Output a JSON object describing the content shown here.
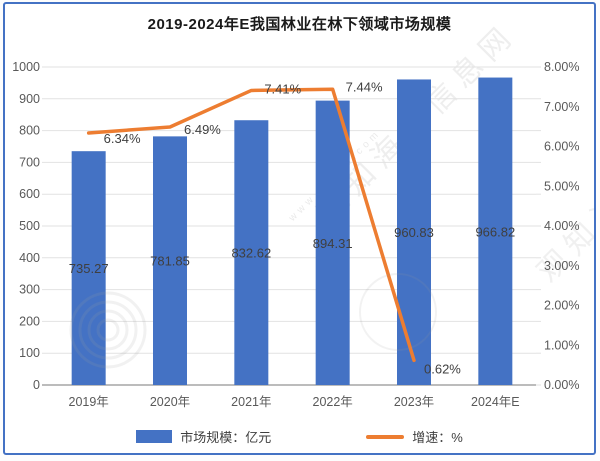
{
  "title": "2019-2024年E我国林业在林下领域市场规模",
  "chart_data": {
    "type": "bar",
    "title": "2019-2024年E我国林业在林下领域市场规模",
    "categories": [
      "2019年",
      "2020年",
      "2021年",
      "2022年",
      "2023年",
      "2024年E"
    ],
    "series": [
      {
        "name": "市场规模：亿元",
        "type": "bar",
        "axis": "left",
        "values": [
          735.27,
          781.85,
          832.62,
          894.31,
          960.83,
          966.82
        ]
      },
      {
        "name": "增速：%",
        "type": "line",
        "axis": "right",
        "values": [
          6.34,
          6.49,
          7.41,
          7.44,
          0.62,
          null
        ]
      }
    ],
    "bar_labels": [
      "735.27",
      "781.85",
      "832.62",
      "894.31",
      "960.83",
      "966.82"
    ],
    "line_labels": [
      "6.34%",
      "6.49%",
      "7.41%",
      "7.44%",
      "0.62%"
    ],
    "left_axis": {
      "min": 0,
      "max": 1000,
      "step": 100
    },
    "right_axis": {
      "min": 0,
      "max": 8,
      "step": 1,
      "format": "percent2"
    },
    "grid": true,
    "legend_position": "bottom",
    "colors": {
      "bar": "#4472C4",
      "line": "#ED7D31",
      "grid": "#e2e2e2",
      "axis_line": "#a6a6a6",
      "axis_text": "#595959",
      "label_text": "#3f3f3f"
    }
  },
  "legend": {
    "items": [
      {
        "label": "市场规模：亿元",
        "type": "bar",
        "color": "#4472C4"
      },
      {
        "label": "增速：%",
        "type": "line",
        "color": "#ED7D31"
      }
    ]
  },
  "watermark": {
    "text": "观知海内信息网",
    "subtext": "www.angob.com"
  }
}
